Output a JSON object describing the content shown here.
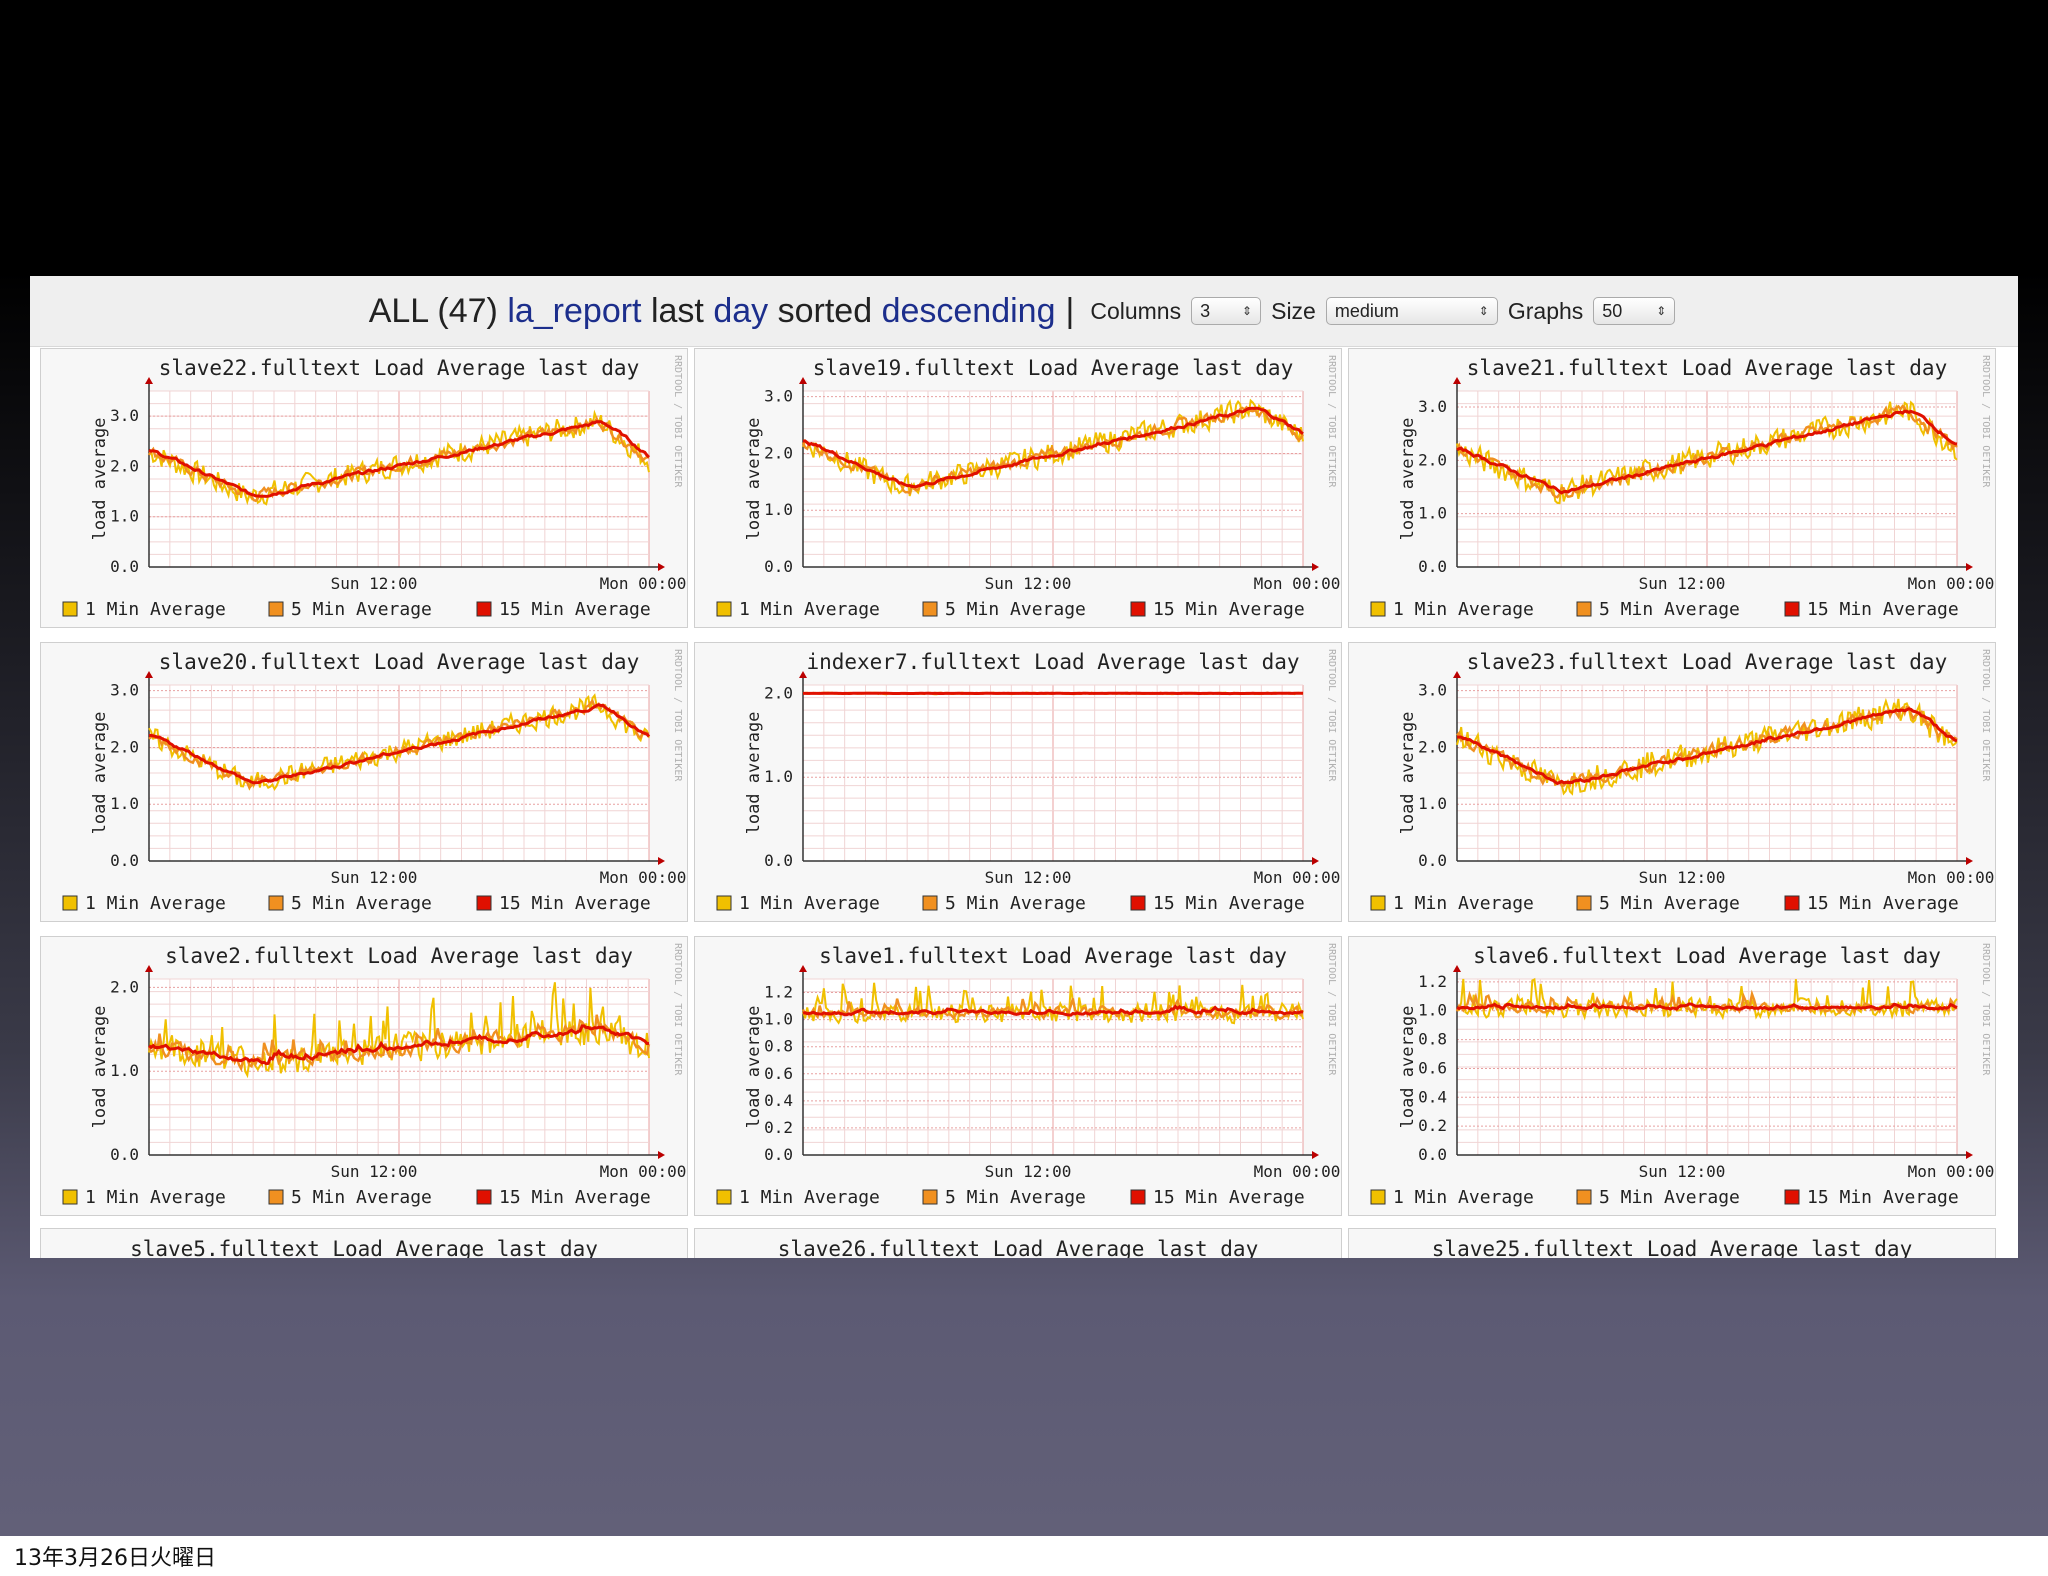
{
  "topbar": {
    "all_label": "ALL (47)",
    "report": "la_report",
    "last": "last",
    "range": "day",
    "sorted": "sorted",
    "order": "descending",
    "sep": "|",
    "columns_label": "Columns",
    "columns_value": "3",
    "size_label": "Size",
    "size_value": "medium",
    "graphs_label": "Graphs",
    "graphs_value": "50"
  },
  "legend": [
    "1 Min Average",
    "5 Min Average",
    "15 Min Average"
  ],
  "colors": {
    "one_min": "#f0c000",
    "five_min": "#f09020",
    "fifteen_min": "#e01000"
  },
  "side_watermark": "RRDTOOL / TOBI OETIKER",
  "footer_date": "13年3月26日火曜日",
  "chart_data": [
    {
      "type": "line",
      "title": "slave22.fulltext Load Average last day",
      "ylabel": "load average",
      "xticks": [
        "Sun 12:00",
        "Mon 00:00"
      ],
      "ytick_labels": [
        "0.0",
        "1.0",
        "2.0",
        "3.0"
      ],
      "ylim": [
        0,
        3.5
      ],
      "shape": "dip-rise",
      "start": 2.3,
      "min": 1.4,
      "end": 2.1,
      "max": 2.9,
      "noise": 0.25
    },
    {
      "type": "line",
      "title": "slave19.fulltext Load Average last day",
      "ylabel": "load average",
      "xticks": [
        "Sun 12:00",
        "Mon 00:00"
      ],
      "ytick_labels": [
        "0.0",
        "1.0",
        "2.0",
        "3.0"
      ],
      "ylim": [
        0,
        3.1
      ],
      "shape": "dip-rise",
      "start": 2.2,
      "min": 1.4,
      "end": 2.3,
      "max": 2.8,
      "noise": 0.22
    },
    {
      "type": "line",
      "title": "slave21.fulltext Load Average last day",
      "ylabel": "load average",
      "xticks": [
        "Sun 12:00",
        "Mon 00:00"
      ],
      "ytick_labels": [
        "0.0",
        "1.0",
        "2.0",
        "3.0"
      ],
      "ylim": [
        0,
        3.3
      ],
      "shape": "dip-rise",
      "start": 2.2,
      "min": 1.4,
      "end": 2.2,
      "max": 2.95,
      "noise": 0.25
    },
    {
      "type": "line",
      "title": "slave20.fulltext Load Average last day",
      "ylabel": "load average",
      "xticks": [
        "Sun 12:00",
        "Mon 00:00"
      ],
      "ytick_labels": [
        "0.0",
        "1.0",
        "2.0",
        "3.0"
      ],
      "ylim": [
        0,
        3.1
      ],
      "shape": "dip-rise",
      "start": 2.2,
      "min": 1.35,
      "end": 2.1,
      "max": 2.75,
      "noise": 0.2
    },
    {
      "type": "line",
      "title": "indexer7.fulltext Load Average last day",
      "ylabel": "load average",
      "xticks": [
        "Sun 12:00",
        "Mon 00:00"
      ],
      "ytick_labels": [
        "0.0",
        "1.0",
        "2.0"
      ],
      "ylim": [
        0,
        2.1
      ],
      "shape": "flat",
      "start": 2.0,
      "min": 2.0,
      "end": 2.0,
      "max": 2.0,
      "noise": 0.01
    },
    {
      "type": "line",
      "title": "slave23.fulltext Load Average last day",
      "ylabel": "load average",
      "xticks": [
        "Sun 12:00",
        "Mon 00:00"
      ],
      "ytick_labels": [
        "0.0",
        "1.0",
        "2.0",
        "3.0"
      ],
      "ylim": [
        0,
        3.1
      ],
      "shape": "dip-rise",
      "start": 2.2,
      "min": 1.35,
      "end": 2.0,
      "max": 2.7,
      "noise": 0.25
    },
    {
      "type": "line",
      "title": "slave2.fulltext Load Average last day",
      "ylabel": "load average",
      "xticks": [
        "Sun 12:00",
        "Mon 00:00"
      ],
      "ytick_labels": [
        "0.0",
        "1.0",
        "2.0"
      ],
      "ylim": [
        0,
        2.1
      ],
      "shape": "spiky-rise",
      "start": 1.3,
      "min": 1.1,
      "end": 1.3,
      "max": 1.5,
      "noise": 0.2
    },
    {
      "type": "line",
      "title": "slave1.fulltext Load Average last day",
      "ylabel": "load average",
      "xticks": [
        "Sun 12:00",
        "Mon 00:00"
      ],
      "ytick_labels": [
        "0.0",
        "0.2",
        "0.4",
        "0.6",
        "0.8",
        "1.0",
        "1.2"
      ],
      "ylim": [
        0,
        1.3
      ],
      "shape": "flat-spiky",
      "start": 1.05,
      "min": 1.0,
      "end": 1.05,
      "max": 1.08,
      "noise": 0.08
    },
    {
      "type": "line",
      "title": "slave6.fulltext Load Average last day",
      "ylabel": "load average",
      "xticks": [
        "Sun 12:00",
        "Mon 00:00"
      ],
      "ytick_labels": [
        "0.0",
        "0.2",
        "0.4",
        "0.6",
        "0.8",
        "1.0",
        "1.2"
      ],
      "ylim": [
        0,
        1.22
      ],
      "shape": "flat-spiky",
      "start": 1.02,
      "min": 1.0,
      "end": 1.02,
      "max": 1.04,
      "noise": 0.07
    }
  ],
  "next_row_titles": [
    "slave5.fulltext Load Average last day",
    "slave26.fulltext Load Average last day",
    "slave25.fulltext Load Average last day"
  ]
}
